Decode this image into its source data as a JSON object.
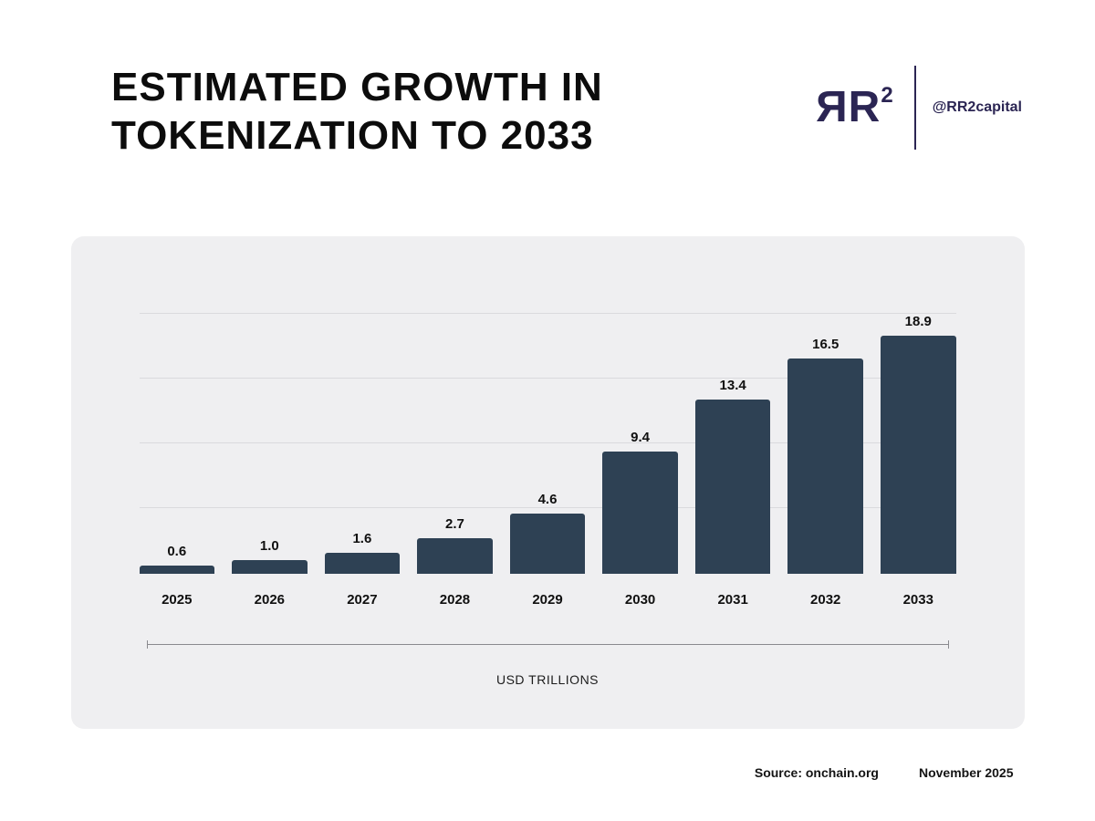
{
  "header": {
    "title_line1": "ESTIMATED GROWTH IN",
    "title_line2": "TOKENIZATION TO 2033",
    "accent_colors": {
      "top": "#93b6bb",
      "bottom": "#f9b64c"
    },
    "brand": {
      "logo_text": "ЯR",
      "logo_sup": "2",
      "handle": "@RR2capital",
      "color": "#2b2553"
    }
  },
  "chart_data": {
    "type": "bar",
    "title": "Estimated Growth in Tokenization to 2033",
    "categories": [
      "2025",
      "2026",
      "2027",
      "2028",
      "2029",
      "2030",
      "2031",
      "2032",
      "2033"
    ],
    "values": [
      0.6,
      1.0,
      1.6,
      2.7,
      4.6,
      9.4,
      13.4,
      16.5,
      18.9
    ],
    "value_labels": [
      "0.6",
      "1.0",
      "1.6",
      "2.7",
      "4.6",
      "9.4",
      "13.4",
      "16.5",
      "18.9"
    ],
    "xlabel": "USD TRILLIONS",
    "ylabel": "",
    "ylim": [
      0,
      20
    ],
    "gridline_values": [
      5,
      10,
      15,
      20
    ],
    "grid": "horizontal-only",
    "legend_position": "none",
    "bar_color": "#2e4154",
    "card_background": "#efeff1"
  },
  "footer": {
    "source": "Source: onchain.org",
    "date": "November 2025"
  }
}
